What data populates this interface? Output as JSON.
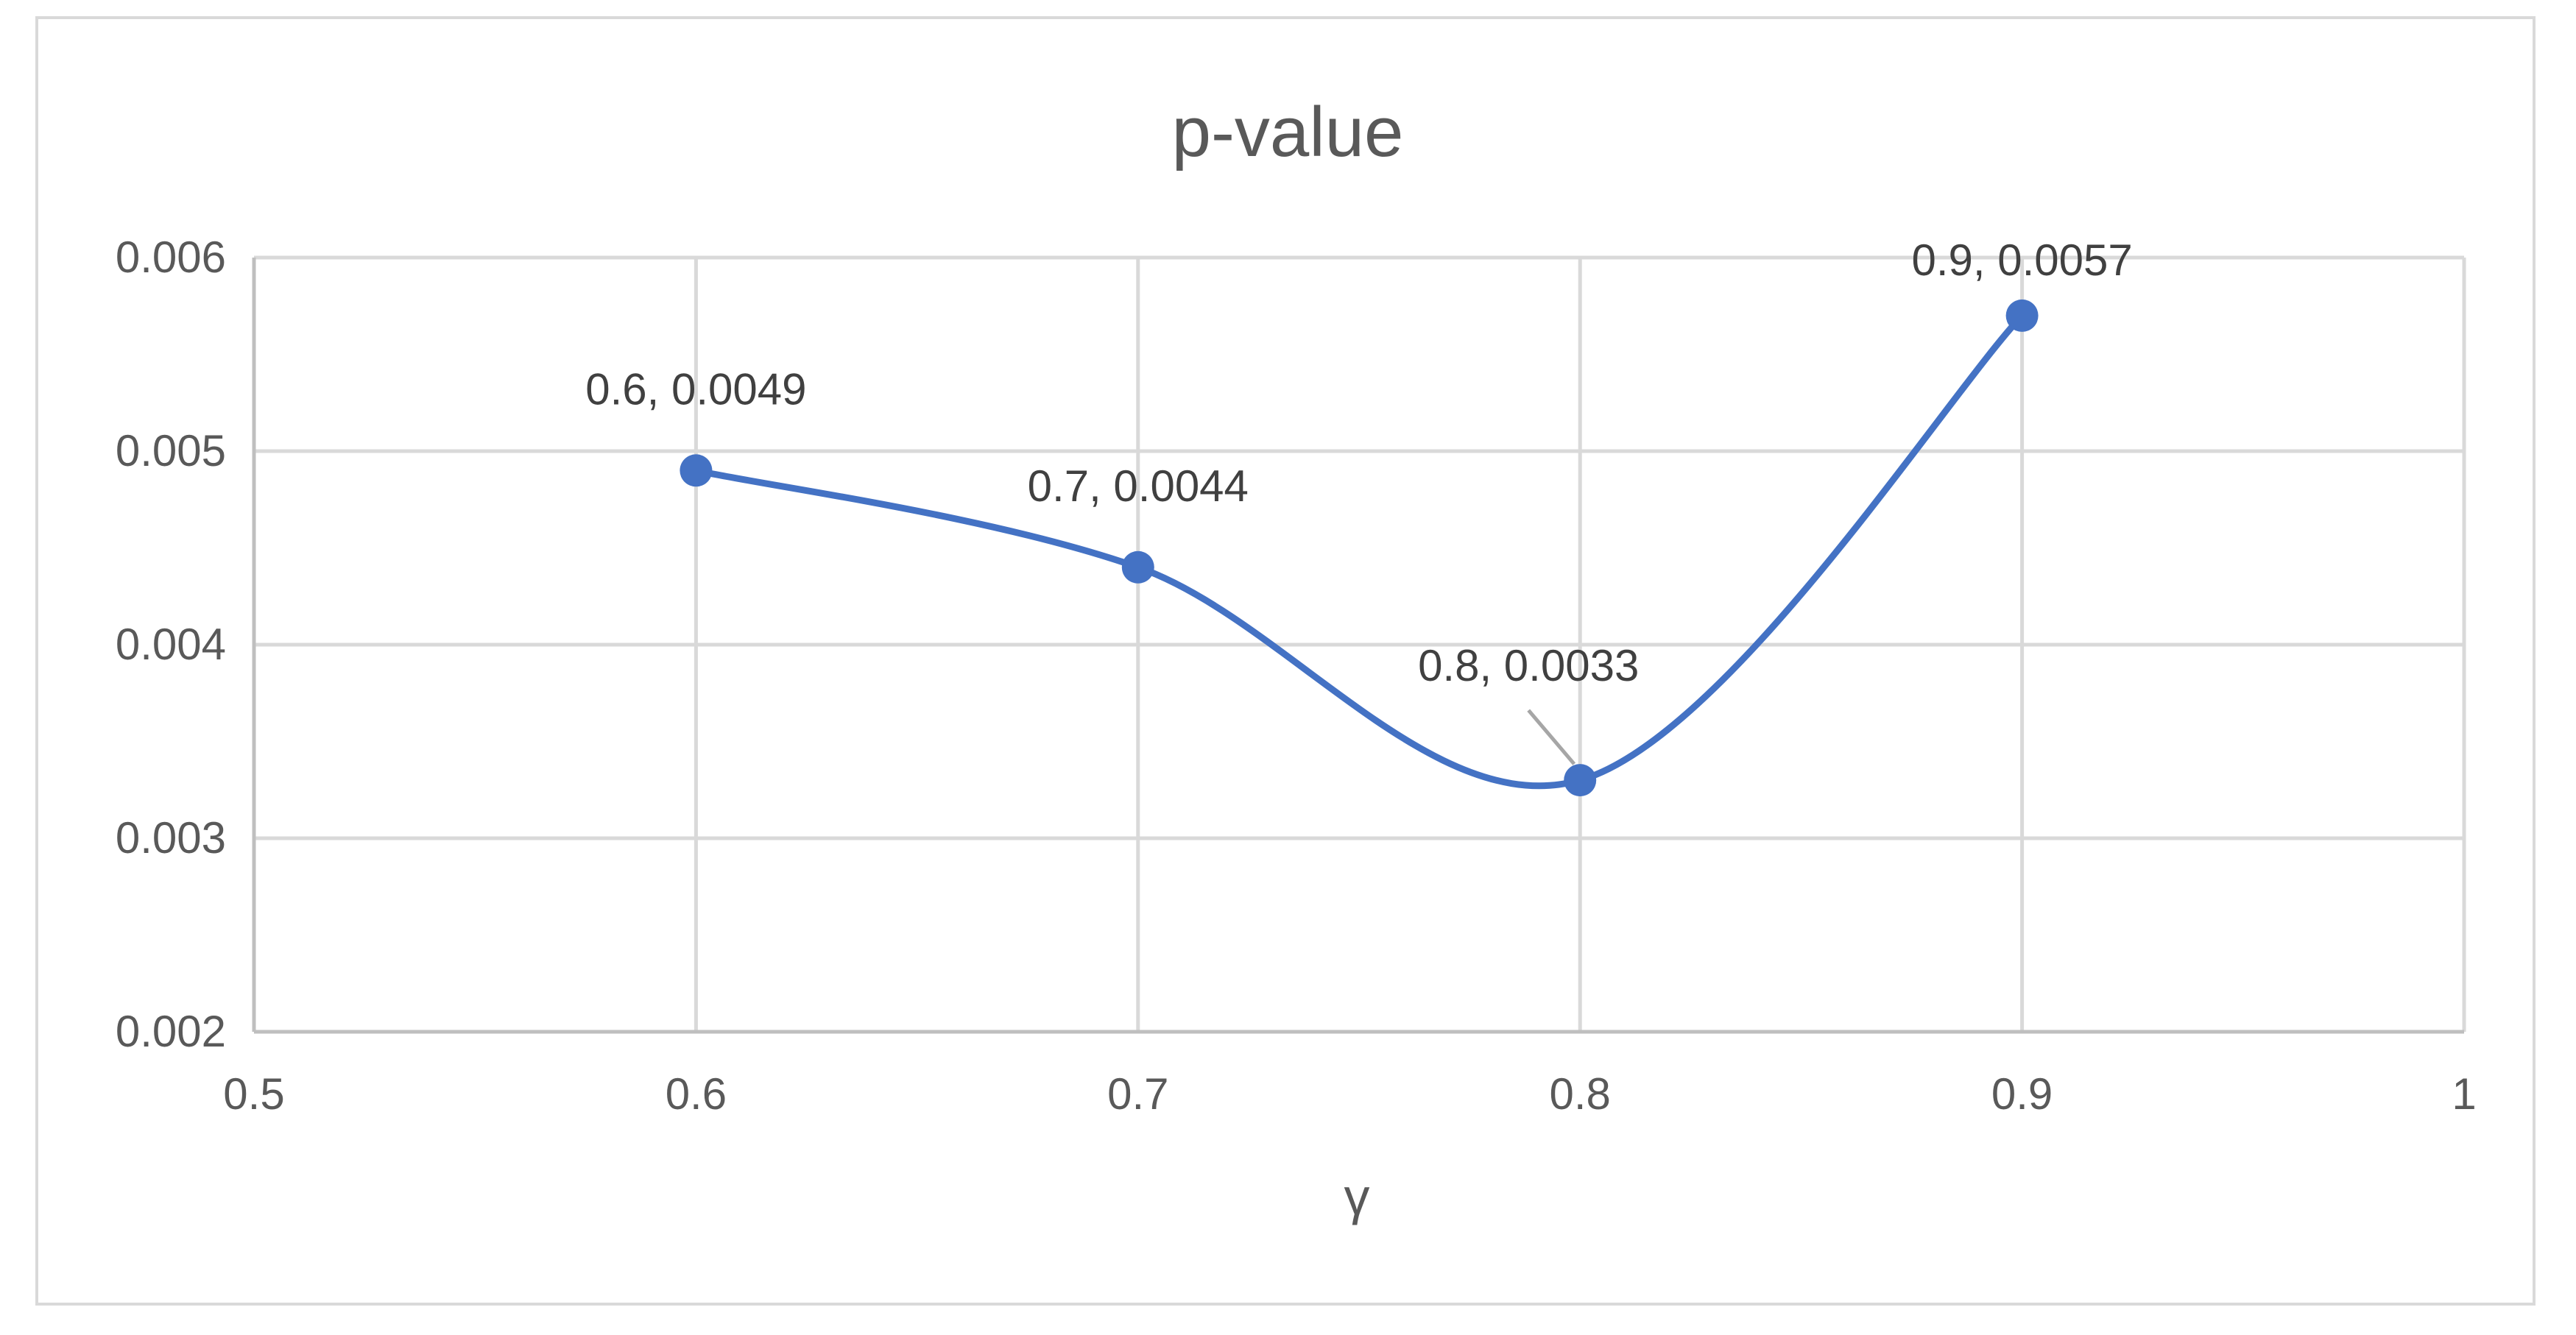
{
  "chart_data": {
    "type": "scatter",
    "title": "p-value",
    "xlabel": "γ",
    "ylabel": "",
    "xlim": [
      0.5,
      1
    ],
    "ylim": [
      0.002,
      0.006
    ],
    "x_ticks": [
      "0.5",
      "0.6",
      "0.7",
      "0.8",
      "0.9",
      "1"
    ],
    "y_ticks": [
      "0.002",
      "0.003",
      "0.004",
      "0.005",
      "0.006"
    ],
    "grid": true,
    "smoothed_line": true,
    "series": [
      {
        "x": [
          0.6,
          0.7,
          0.8,
          0.9
        ],
        "y": [
          0.0049,
          0.0044,
          0.0033,
          0.0057
        ],
        "labels": [
          "0.6, 0.0049",
          "0.7, 0.0044",
          "0.8, 0.0033",
          "0.9, 0.0057"
        ],
        "color": "#4472c4"
      }
    ],
    "colors": {
      "series": "#4472c4",
      "grid": "#d9d9d9",
      "axis": "#bfbfbf",
      "text": "#595959",
      "label_text": "#404040",
      "leader": "#a6a6a6"
    }
  }
}
